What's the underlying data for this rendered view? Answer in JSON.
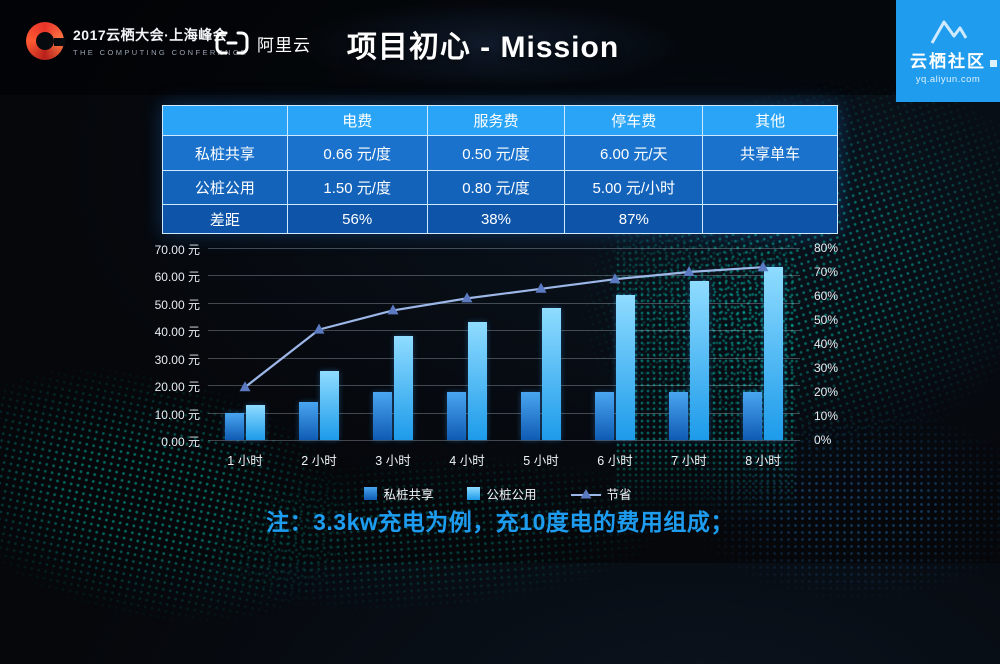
{
  "header": {
    "conference": {
      "line1": "2017云栖大会·上海峰会",
      "line2": "THE COMPUTING CONFERENCE"
    },
    "aliyun": "阿里云",
    "title": "项目初心 - Mission",
    "community": {
      "name": "云栖社区",
      "url": "yq.aliyun.com"
    }
  },
  "table": {
    "columns": [
      "",
      "电费",
      "服务费",
      "停车费",
      "其他"
    ],
    "rows": [
      {
        "label": "私桩共享",
        "cells": [
          "0.66 元/度",
          "0.50 元/度",
          "6.00 元/天",
          "共享单车"
        ]
      },
      {
        "label": "公桩公用",
        "cells": [
          "1.50 元/度",
          "0.80 元/度",
          "5.00 元/小时",
          ""
        ]
      },
      {
        "label": "差距",
        "cells": [
          "56%",
          "38%",
          "87%",
          ""
        ]
      }
    ]
  },
  "chart_data": {
    "type": "bar",
    "subtype": "bar+line combo",
    "categories": [
      "1 小时",
      "2 小时",
      "3 小时",
      "4 小时",
      "5 小时",
      "6 小时",
      "7 小时",
      "8 小时"
    ],
    "bar_series": [
      {
        "name": "私桩共享",
        "values": [
          9.8,
          13.7,
          17.5,
          17.6,
          17.6,
          17.6,
          17.6,
          17.6
        ],
        "color": "#0f5bb4",
        "color_light": "#4aa6f0"
      },
      {
        "name": "公桩公用",
        "values": [
          12.6,
          25.2,
          37.8,
          43.0,
          48.0,
          53.0,
          58.0,
          63.0
        ],
        "color": "#1d9bea",
        "color_light": "#8fdcff"
      }
    ],
    "line_series": {
      "name": "节省",
      "values": [
        22,
        46,
        54,
        59,
        63,
        67,
        70,
        72
      ],
      "unit": "%",
      "color": "#9db7e8",
      "marker_color": "#5b7ac2"
    },
    "left_axis": {
      "min": 0,
      "max": 70,
      "step": 10,
      "unit": "元",
      "labels": [
        "70.00 元",
        "60.00 元",
        "50.00 元",
        "40.00 元",
        "30.00 元",
        "20.00 元",
        "10.00 元",
        "0.00 元"
      ]
    },
    "right_axis": {
      "min": 0,
      "max": 80,
      "step": 10,
      "unit": "%",
      "labels": [
        "80%",
        "70%",
        "60%",
        "50%",
        "40%",
        "30%",
        "20%",
        "10%",
        "0%"
      ]
    },
    "grid": true,
    "legend_position": "bottom"
  },
  "note": "注：3.3kw充电为例，充10度电的费用组成；"
}
